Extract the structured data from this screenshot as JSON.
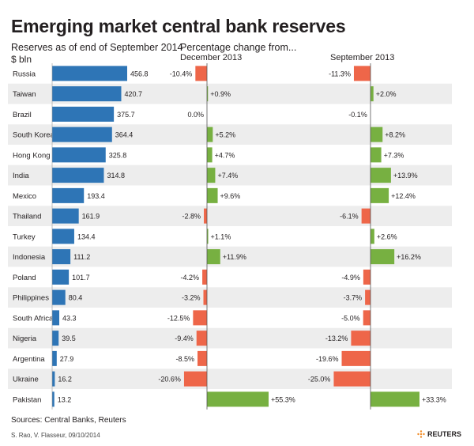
{
  "title": "Emerging market central bank reserves",
  "subtitle_reserves": "Reserves as of end of September 2014",
  "unit_label": "$ bln",
  "subtitle_change": "Percentage change from...",
  "col_dec": "December 2013",
  "col_sep": "September 2013",
  "source": "Sources:  Central Banks, Reuters",
  "credit": "S. Rao, V. Flasseur, 09/10/2014",
  "logo_text": "REUTERS",
  "colors": {
    "reserves_bar": "#2e75b6",
    "positive": "#77b041",
    "negative": "#ee6649",
    "row_band": "#ededed"
  },
  "chart_data": {
    "type": "bar",
    "categories": [
      "Russia",
      "Taiwan",
      "Brazil",
      "South Korea",
      "Hong Kong",
      "India",
      "Mexico",
      "Thailand",
      "Turkey",
      "Indonesia",
      "Poland",
      "Philippines",
      "South Africa",
      "Nigeria",
      "Argentina",
      "Ukraine",
      "Pakistan"
    ],
    "series": [
      {
        "key": "reserves",
        "values": [
          456.8,
          420.7,
          375.7,
          364.4,
          325.8,
          314.8,
          193.4,
          161.9,
          134.4,
          111.2,
          101.7,
          80.4,
          43.3,
          39.5,
          27.9,
          16.2,
          13.2
        ],
        "labels": [
          "456.8",
          "420.7",
          "375.7",
          "364.4",
          "325.8",
          "314.8",
          "193.4",
          "161.9",
          "134.4",
          "111.2",
          "101.7",
          "80.4",
          "43.3",
          "39.5",
          "27.9",
          "16.2",
          "13.2"
        ]
      },
      {
        "key": "dec",
        "values": [
          -10.4,
          0.9,
          0.0,
          5.2,
          4.7,
          7.4,
          9.6,
          -2.8,
          1.1,
          11.9,
          -4.2,
          -3.2,
          -12.5,
          -9.4,
          -8.5,
          -20.6,
          55.3
        ],
        "labels": [
          "-10.4%",
          "+0.9%",
          "0.0%",
          "+5.2%",
          "+4.7%",
          "+7.4%",
          "+9.6%",
          "-2.8%",
          "+1.1%",
          "+11.9%",
          "-4.2%",
          "-3.2%",
          "-12.5%",
          "-9.4%",
          "-8.5%",
          "-20.6%",
          "+55.3%"
        ]
      },
      {
        "key": "sep",
        "values": [
          -11.3,
          2.0,
          -0.1,
          8.2,
          7.3,
          13.9,
          12.4,
          -6.1,
          2.6,
          16.2,
          -4.9,
          -3.7,
          -5.0,
          -13.2,
          -19.6,
          -25.0,
          33.3
        ],
        "labels": [
          "-11.3%",
          "+2.0%",
          "-0.1%",
          "+8.2%",
          "+7.3%",
          "+13.9%",
          "+12.4%",
          "-6.1%",
          "+2.6%",
          "+16.2%",
          "-4.9%",
          "-3.7%",
          "-5.0%",
          "-13.2%",
          "-19.6%",
          "-25.0%",
          "+33.3%"
        ]
      }
    ]
  }
}
